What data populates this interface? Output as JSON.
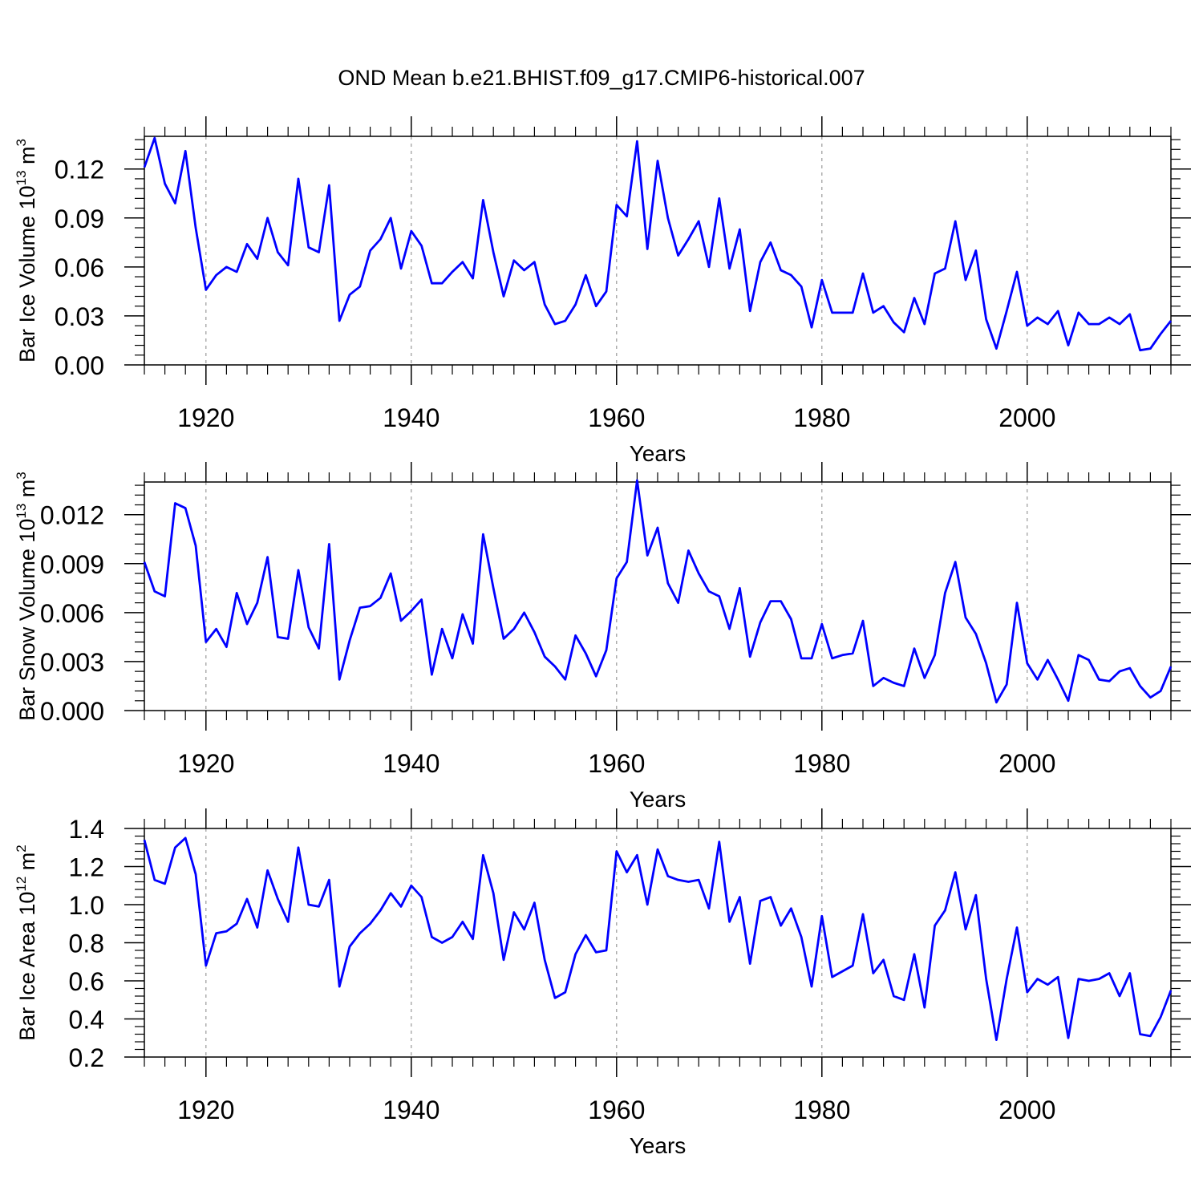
{
  "title": "OND Mean b.e21.BHIST.f09_g17.CMIP6-historical.007",
  "line_color": "#0000ff",
  "chart_data": [
    {
      "type": "line",
      "ylabel": "Bar Ice Volume 10",
      "ylabel_exp": "13",
      "ylabel_unit": " m",
      "ylabel_unit_exp": "3",
      "xlabel": "Years",
      "xlim": [
        1914,
        2014
      ],
      "ylim": [
        0,
        0.14
      ],
      "yticks": [
        0,
        0.03,
        0.06,
        0.09,
        0.12
      ],
      "ytick_labels": [
        "0.00",
        "0.03",
        "0.06",
        "0.09",
        "0.12"
      ],
      "xticks": [
        1920,
        1940,
        1960,
        1980,
        2000
      ],
      "xtick_labels": [
        "1920",
        "1940",
        "1960",
        "1980",
        "2000"
      ],
      "x": [
        1914,
        1915,
        1916,
        1917,
        1918,
        1919,
        1920,
        1921,
        1922,
        1923,
        1924,
        1925,
        1926,
        1927,
        1928,
        1929,
        1930,
        1931,
        1932,
        1933,
        1934,
        1935,
        1936,
        1937,
        1938,
        1939,
        1940,
        1941,
        1942,
        1943,
        1944,
        1945,
        1946,
        1947,
        1948,
        1949,
        1950,
        1951,
        1952,
        1953,
        1954,
        1955,
        1956,
        1957,
        1958,
        1959,
        1960,
        1961,
        1962,
        1963,
        1964,
        1965,
        1966,
        1967,
        1968,
        1969,
        1970,
        1971,
        1972,
        1973,
        1974,
        1975,
        1976,
        1977,
        1978,
        1979,
        1980,
        1981,
        1982,
        1983,
        1984,
        1985,
        1986,
        1987,
        1988,
        1989,
        1990,
        1991,
        1992,
        1993,
        1994,
        1995,
        1996,
        1997,
        1998,
        1999,
        2000,
        2001,
        2002,
        2003,
        2004,
        2005,
        2006,
        2007,
        2008,
        2009,
        2010,
        2011,
        2012,
        2013,
        2014
      ],
      "values": [
        0.121,
        0.139,
        0.111,
        0.099,
        0.131,
        0.084,
        0.046,
        0.055,
        0.06,
        0.057,
        0.074,
        0.065,
        0.09,
        0.069,
        0.061,
        0.114,
        0.072,
        0.069,
        0.11,
        0.027,
        0.043,
        0.048,
        0.07,
        0.077,
        0.09,
        0.059,
        0.082,
        0.073,
        0.05,
        0.05,
        0.057,
        0.063,
        0.053,
        0.101,
        0.069,
        0.042,
        0.064,
        0.058,
        0.063,
        0.037,
        0.025,
        0.027,
        0.037,
        0.055,
        0.036,
        0.045,
        0.098,
        0.091,
        0.137,
        0.071,
        0.125,
        0.09,
        0.067,
        0.077,
        0.088,
        0.06,
        0.102,
        0.059,
        0.083,
        0.033,
        0.063,
        0.075,
        0.058,
        0.055,
        0.048,
        0.023,
        0.052,
        0.032,
        0.032,
        0.032,
        0.056,
        0.032,
        0.036,
        0.026,
        0.02,
        0.041,
        0.025,
        0.056,
        0.059,
        0.088,
        0.052,
        0.07,
        0.028,
        0.01,
        0.033,
        0.057,
        0.024,
        0.029,
        0.025,
        0.033,
        0.012,
        0.032,
        0.025,
        0.025,
        0.029,
        0.025,
        0.031,
        0.009,
        0.01,
        0.019,
        0.027
      ]
    },
    {
      "type": "line",
      "ylabel": "Bar Snow Volume 10",
      "ylabel_exp": "13",
      "ylabel_unit": " m",
      "ylabel_unit_exp": "3",
      "xlabel": "Years",
      "xlim": [
        1914,
        2014
      ],
      "ylim": [
        0,
        0.014
      ],
      "yticks": [
        0,
        0.003,
        0.006,
        0.009,
        0.012
      ],
      "ytick_labels": [
        "0.000",
        "0.003",
        "0.006",
        "0.009",
        "0.012"
      ],
      "xticks": [
        1920,
        1940,
        1960,
        1980,
        2000
      ],
      "xtick_labels": [
        "1920",
        "1940",
        "1960",
        "1980",
        "2000"
      ],
      "x": [
        1914,
        1915,
        1916,
        1917,
        1918,
        1919,
        1920,
        1921,
        1922,
        1923,
        1924,
        1925,
        1926,
        1927,
        1928,
        1929,
        1930,
        1931,
        1932,
        1933,
        1934,
        1935,
        1936,
        1937,
        1938,
        1939,
        1940,
        1941,
        1942,
        1943,
        1944,
        1945,
        1946,
        1947,
        1948,
        1949,
        1950,
        1951,
        1952,
        1953,
        1954,
        1955,
        1956,
        1957,
        1958,
        1959,
        1960,
        1961,
        1962,
        1963,
        1964,
        1965,
        1966,
        1967,
        1968,
        1969,
        1970,
        1971,
        1972,
        1973,
        1974,
        1975,
        1976,
        1977,
        1978,
        1979,
        1980,
        1981,
        1982,
        1983,
        1984,
        1985,
        1986,
        1987,
        1988,
        1989,
        1990,
        1991,
        1992,
        1993,
        1994,
        1995,
        1996,
        1997,
        1998,
        1999,
        2000,
        2001,
        2002,
        2003,
        2004,
        2005,
        2006,
        2007,
        2008,
        2009,
        2010,
        2011,
        2012,
        2013,
        2014
      ],
      "values": [
        0.0091,
        0.0073,
        0.007,
        0.0127,
        0.0124,
        0.0101,
        0.0042,
        0.005,
        0.0039,
        0.0072,
        0.0053,
        0.0066,
        0.0094,
        0.0045,
        0.0044,
        0.0086,
        0.0051,
        0.0038,
        0.0102,
        0.0019,
        0.0043,
        0.0063,
        0.0064,
        0.0069,
        0.0084,
        0.0055,
        0.0061,
        0.0068,
        0.0022,
        0.005,
        0.0032,
        0.0059,
        0.0041,
        0.0108,
        0.0075,
        0.0044,
        0.005,
        0.006,
        0.0048,
        0.0033,
        0.0027,
        0.0019,
        0.0046,
        0.0035,
        0.0021,
        0.0037,
        0.0081,
        0.0091,
        0.0141,
        0.0095,
        0.0112,
        0.0078,
        0.0066,
        0.0098,
        0.0084,
        0.0073,
        0.007,
        0.005,
        0.0075,
        0.0033,
        0.0054,
        0.0067,
        0.0067,
        0.0056,
        0.0032,
        0.0032,
        0.0053,
        0.0032,
        0.0034,
        0.0035,
        0.0055,
        0.0015,
        0.002,
        0.0017,
        0.0015,
        0.0038,
        0.002,
        0.0034,
        0.0072,
        0.0091,
        0.0057,
        0.0047,
        0.0029,
        0.0005,
        0.0016,
        0.0066,
        0.0029,
        0.0019,
        0.0031,
        0.0019,
        0.0006,
        0.0034,
        0.0031,
        0.0019,
        0.0018,
        0.0024,
        0.0026,
        0.0015,
        0.0008,
        0.0012,
        0.0027
      ]
    },
    {
      "type": "line",
      "ylabel": "Bar Ice Area 10",
      "ylabel_exp": "12",
      "ylabel_unit": " m",
      "ylabel_unit_exp": "2",
      "xlabel": "Years",
      "xlim": [
        1914,
        2014
      ],
      "ylim": [
        0.2,
        1.4
      ],
      "yticks": [
        0.2,
        0.4,
        0.6,
        0.8,
        1.0,
        1.2,
        1.4
      ],
      "ytick_labels": [
        "0.2",
        "0.4",
        "0.6",
        "0.8",
        "1.0",
        "1.2",
        "1.4"
      ],
      "xticks": [
        1920,
        1940,
        1960,
        1980,
        2000
      ],
      "xtick_labels": [
        "1920",
        "1940",
        "1960",
        "1980",
        "2000"
      ],
      "x": [
        1914,
        1915,
        1916,
        1917,
        1918,
        1919,
        1920,
        1921,
        1922,
        1923,
        1924,
        1925,
        1926,
        1927,
        1928,
        1929,
        1930,
        1931,
        1932,
        1933,
        1934,
        1935,
        1936,
        1937,
        1938,
        1939,
        1940,
        1941,
        1942,
        1943,
        1944,
        1945,
        1946,
        1947,
        1948,
        1949,
        1950,
        1951,
        1952,
        1953,
        1954,
        1955,
        1956,
        1957,
        1958,
        1959,
        1960,
        1961,
        1962,
        1963,
        1964,
        1965,
        1966,
        1967,
        1968,
        1969,
        1970,
        1971,
        1972,
        1973,
        1974,
        1975,
        1976,
        1977,
        1978,
        1979,
        1980,
        1981,
        1982,
        1983,
        1984,
        1985,
        1986,
        1987,
        1988,
        1989,
        1990,
        1991,
        1992,
        1993,
        1994,
        1995,
        1996,
        1997,
        1998,
        1999,
        2000,
        2001,
        2002,
        2003,
        2004,
        2005,
        2006,
        2007,
        2008,
        2009,
        2010,
        2011,
        2012,
        2013,
        2014
      ],
      "values": [
        1.34,
        1.13,
        1.11,
        1.3,
        1.35,
        1.16,
        0.68,
        0.85,
        0.86,
        0.9,
        1.03,
        0.88,
        1.18,
        1.03,
        0.91,
        1.3,
        1.0,
        0.99,
        1.13,
        0.57,
        0.78,
        0.85,
        0.9,
        0.97,
        1.06,
        0.99,
        1.1,
        1.04,
        0.83,
        0.8,
        0.83,
        0.91,
        0.82,
        1.26,
        1.06,
        0.71,
        0.96,
        0.87,
        1.01,
        0.71,
        0.51,
        0.54,
        0.74,
        0.84,
        0.75,
        0.76,
        1.28,
        1.17,
        1.26,
        1.0,
        1.29,
        1.15,
        1.13,
        1.12,
        1.13,
        0.98,
        1.33,
        0.91,
        1.04,
        0.69,
        1.02,
        1.04,
        0.89,
        0.98,
        0.83,
        0.57,
        0.94,
        0.62,
        0.65,
        0.68,
        0.95,
        0.64,
        0.71,
        0.52,
        0.5,
        0.74,
        0.46,
        0.89,
        0.97,
        1.17,
        0.87,
        1.05,
        0.61,
        0.29,
        0.61,
        0.88,
        0.54,
        0.61,
        0.58,
        0.62,
        0.3,
        0.61,
        0.6,
        0.61,
        0.64,
        0.52,
        0.64,
        0.32,
        0.31,
        0.41,
        0.55
      ]
    }
  ]
}
